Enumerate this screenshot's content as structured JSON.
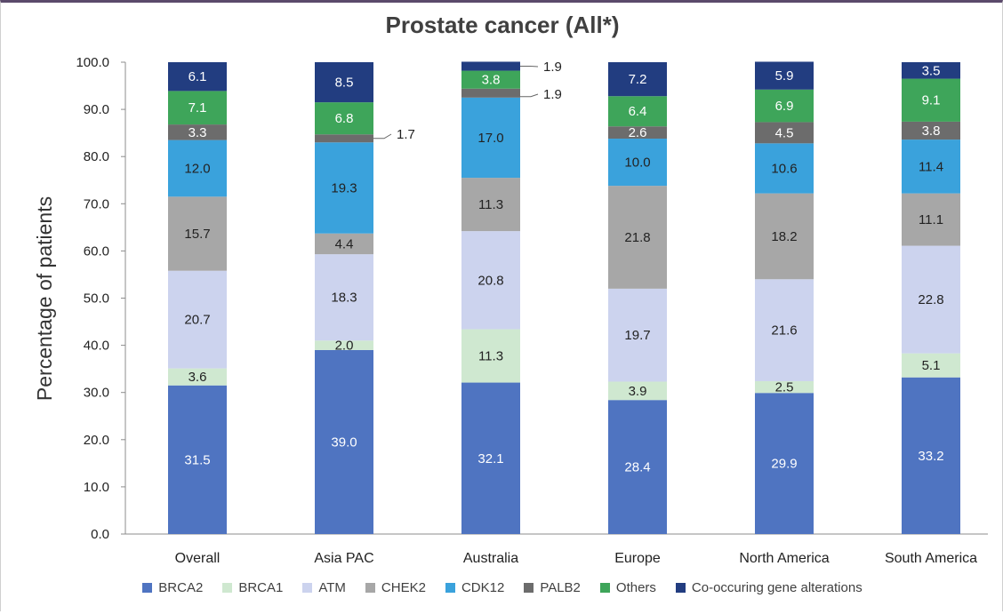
{
  "chart_data": {
    "type": "bar",
    "stacked": true,
    "title": "Prostate cancer (All*)",
    "ylabel": "Percentage of patients",
    "xlabel": "",
    "ylim": [
      0,
      100
    ],
    "yticks": [
      "0.0",
      "10.0",
      "20.0",
      "30.0",
      "40.0",
      "50.0",
      "60.0",
      "70.0",
      "80.0",
      "90.0",
      "100.0"
    ],
    "categories": [
      "Overall",
      "Asia PAC",
      "Australia",
      "Europe",
      "North America",
      "South America"
    ],
    "legend_position": "bottom",
    "grid": false,
    "series": [
      {
        "name": "BRCA2",
        "color": "#4f74c1",
        "label_color": "#ffffff",
        "values": [
          31.5,
          39.0,
          32.1,
          28.4,
          29.9,
          33.2
        ]
      },
      {
        "name": "BRCA1",
        "color": "#cfe8d0",
        "label_color": "#222222",
        "values": [
          3.6,
          2.0,
          11.3,
          3.9,
          2.5,
          5.1
        ]
      },
      {
        "name": "ATM",
        "color": "#ccd3ee",
        "label_color": "#222222",
        "values": [
          20.7,
          18.3,
          20.8,
          19.7,
          21.6,
          22.8
        ]
      },
      {
        "name": "CHEK2",
        "color": "#a7a7a7",
        "label_color": "#222222",
        "values": [
          15.7,
          4.4,
          11.3,
          21.8,
          18.2,
          11.1
        ]
      },
      {
        "name": "CDK12",
        "color": "#3aa2dc",
        "label_color": "#222222",
        "values": [
          12.0,
          19.3,
          17.0,
          10.0,
          10.6,
          11.4
        ]
      },
      {
        "name": "PALB2",
        "color": "#6c6c6c",
        "label_color": "#ffffff",
        "values": [
          3.3,
          1.7,
          1.9,
          2.6,
          4.5,
          3.8
        ]
      },
      {
        "name": "Others",
        "color": "#3ea55a",
        "label_color": "#ffffff",
        "values": [
          7.1,
          6.8,
          3.8,
          6.4,
          6.9,
          9.1
        ]
      },
      {
        "name": "Co-occuring gene alterations",
        "color": "#223d80",
        "label_color": "#ffffff",
        "values": [
          6.1,
          8.5,
          1.9,
          7.2,
          5.9,
          3.5
        ]
      }
    ],
    "callout_labels": [
      {
        "category_index": 1,
        "series_index": 5,
        "text": "1.7"
      },
      {
        "category_index": 2,
        "series_index": 7,
        "text": "1.9"
      },
      {
        "category_index": 2,
        "series_index": 5,
        "text": "1.9"
      }
    ]
  }
}
